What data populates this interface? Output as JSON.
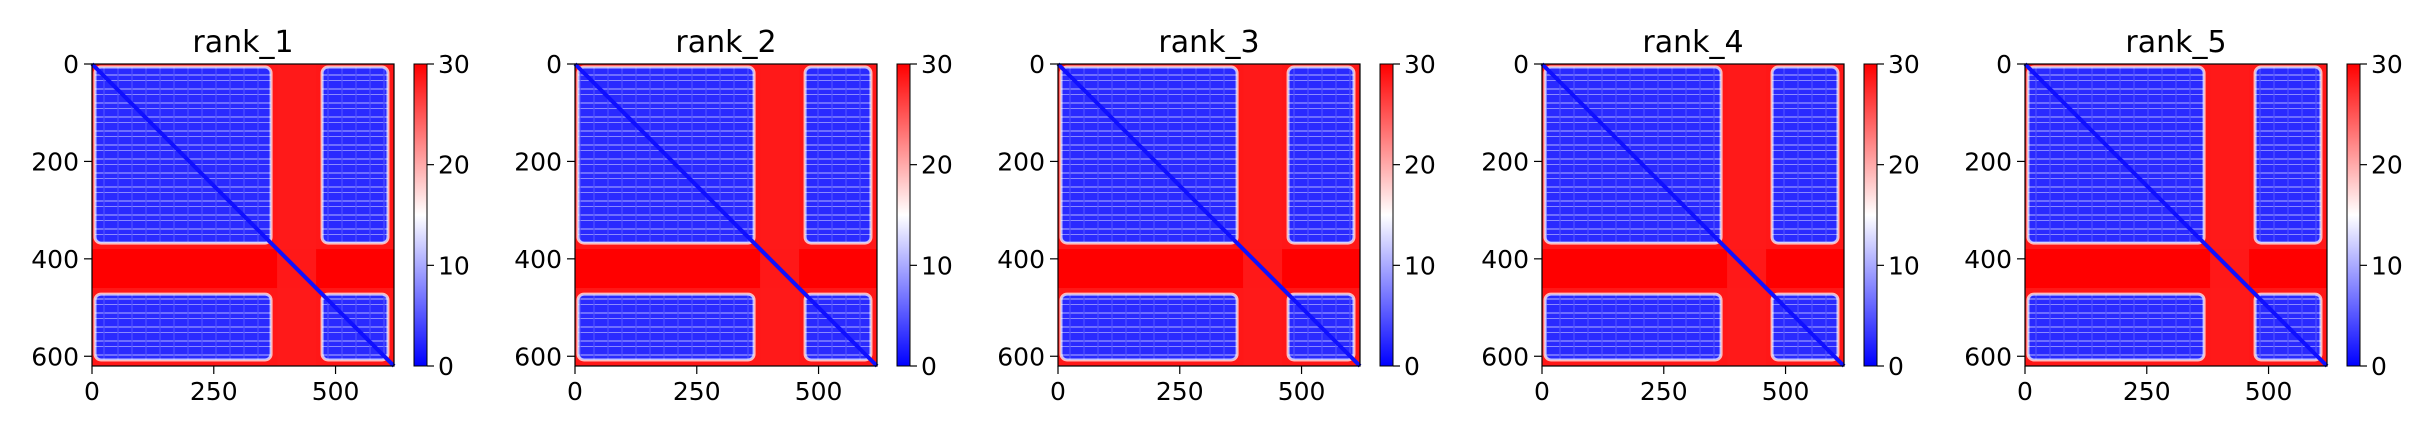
{
  "chart_data": [
    {
      "type": "heatmap",
      "title": "rank_1",
      "xticks": [
        0,
        250,
        500
      ],
      "yticks": [
        0,
        200,
        400,
        600
      ],
      "xlim": [
        0,
        620
      ],
      "ylim": [
        620,
        0
      ],
      "colorbar": {
        "ticks": [
          0,
          10,
          20,
          30
        ],
        "range": [
          0,
          30
        ],
        "colormap": "bwr"
      },
      "regions": {
        "domain_a": [
          0,
          380
        ],
        "linker": [
          380,
          460
        ],
        "domain_b": [
          460,
          620
        ]
      },
      "values": {
        "intra_domain_min": 0,
        "intra_domain_typical": 6,
        "linker_value": 30,
        "off_domain_value": 30
      }
    },
    {
      "type": "heatmap",
      "title": "rank_2",
      "xticks": [
        0,
        250,
        500
      ],
      "yticks": [
        0,
        200,
        400,
        600
      ],
      "xlim": [
        0,
        620
      ],
      "ylim": [
        620,
        0
      ],
      "colorbar": {
        "ticks": [
          0,
          10,
          20,
          30
        ],
        "range": [
          0,
          30
        ],
        "colormap": "bwr"
      },
      "regions": {
        "domain_a": [
          0,
          380
        ],
        "linker": [
          380,
          460
        ],
        "domain_b": [
          460,
          620
        ]
      },
      "values": {
        "intra_domain_min": 0,
        "intra_domain_typical": 6,
        "linker_value": 30,
        "off_domain_value": 30
      }
    },
    {
      "type": "heatmap",
      "title": "rank_3",
      "xticks": [
        0,
        250,
        500
      ],
      "yticks": [
        0,
        200,
        400,
        600
      ],
      "xlim": [
        0,
        620
      ],
      "ylim": [
        620,
        0
      ],
      "colorbar": {
        "ticks": [
          0,
          10,
          20,
          30
        ],
        "range": [
          0,
          30
        ],
        "colormap": "bwr"
      },
      "regions": {
        "domain_a": [
          0,
          380
        ],
        "linker": [
          380,
          460
        ],
        "domain_b": [
          460,
          620
        ]
      },
      "values": {
        "intra_domain_min": 0,
        "intra_domain_typical": 6,
        "linker_value": 30,
        "off_domain_value": 30
      }
    },
    {
      "type": "heatmap",
      "title": "rank_4",
      "xticks": [
        0,
        250,
        500
      ],
      "yticks": [
        0,
        200,
        400,
        600
      ],
      "xlim": [
        0,
        620
      ],
      "ylim": [
        620,
        0
      ],
      "colorbar": {
        "ticks": [
          0,
          10,
          20,
          30
        ],
        "range": [
          0,
          30
        ],
        "colormap": "bwr"
      },
      "regions": {
        "domain_a": [
          0,
          380
        ],
        "linker": [
          380,
          460
        ],
        "domain_b": [
          460,
          620
        ]
      },
      "values": {
        "intra_domain_min": 0,
        "intra_domain_typical": 6,
        "linker_value": 30,
        "off_domain_value": 30
      }
    },
    {
      "type": "heatmap",
      "title": "rank_5",
      "xticks": [
        0,
        250,
        500
      ],
      "yticks": [
        0,
        200,
        400,
        600
      ],
      "xlim": [
        0,
        620
      ],
      "ylim": [
        620,
        0
      ],
      "colorbar": {
        "ticks": [
          0,
          10,
          20,
          30
        ],
        "range": [
          0,
          30
        ],
        "colormap": "bwr"
      },
      "regions": {
        "domain_a": [
          0,
          380
        ],
        "linker": [
          380,
          460
        ],
        "domain_b": [
          460,
          620
        ]
      },
      "values": {
        "intra_domain_min": 0,
        "intra_domain_typical": 6,
        "linker_value": 30,
        "off_domain_value": 30
      }
    }
  ],
  "colors": {
    "low": "#0000ff",
    "mid": "#ffffff",
    "high": "#ff0000",
    "diagonal": "#1010ff"
  }
}
